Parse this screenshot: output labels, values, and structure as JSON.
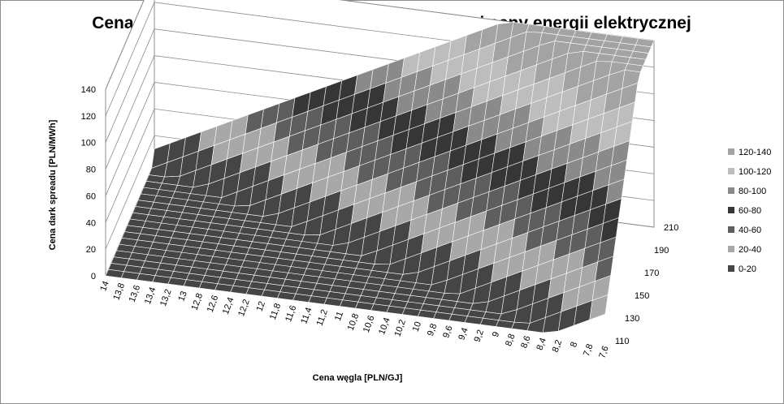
{
  "chart_data": {
    "type": "surface-3d",
    "title": "Cena  dark spreadu w zależności od ceny węgla i ceny energii elektrycznej",
    "xlabel": "Cena węgla [PLN/GJ]",
    "ylabel": "",
    "zlabel": "Cena dark spreadu  [PLN/MWh]",
    "x_ticks": [
      "14",
      "13,8",
      "13,6",
      "13,4",
      "13,2",
      "13",
      "12,8",
      "12,6",
      "12,4",
      "12,2",
      "12",
      "11,8",
      "11,6",
      "11,4",
      "11,2",
      "11",
      "10,8",
      "10,6",
      "10,4",
      "10,2",
      "10",
      "9,8",
      "9,6",
      "9,4",
      "9,2",
      "9",
      "8,8",
      "8,6",
      "8,4",
      "8,2",
      "8",
      "7,8",
      "7,6"
    ],
    "y_ticks": [
      "110",
      "130",
      "150",
      "170",
      "190",
      "210"
    ],
    "z_ticks": [
      "0",
      "20",
      "40",
      "60",
      "80",
      "100",
      "120",
      "140"
    ],
    "zlim": [
      0,
      140
    ],
    "grid": true,
    "legend_position": "right",
    "legend": [
      {
        "label": "120-140",
        "color": "#a3a3a3"
      },
      {
        "label": "100-120",
        "color": "#bdbdbd"
      },
      {
        "label": "80-100",
        "color": "#8a8a8a"
      },
      {
        "label": "60-80",
        "color": "#363636"
      },
      {
        "label": "40-60",
        "color": "#5e5e5e"
      },
      {
        "label": "20-40",
        "color": "#a8a8a8"
      },
      {
        "label": "0-20",
        "color": "#454545"
      }
    ],
    "corner_values": {
      "coal_14_power_110": 0,
      "coal_14_power_210": 0,
      "coal_7.6_power_110": 0,
      "coal_7.6_power_210": 140
    }
  }
}
